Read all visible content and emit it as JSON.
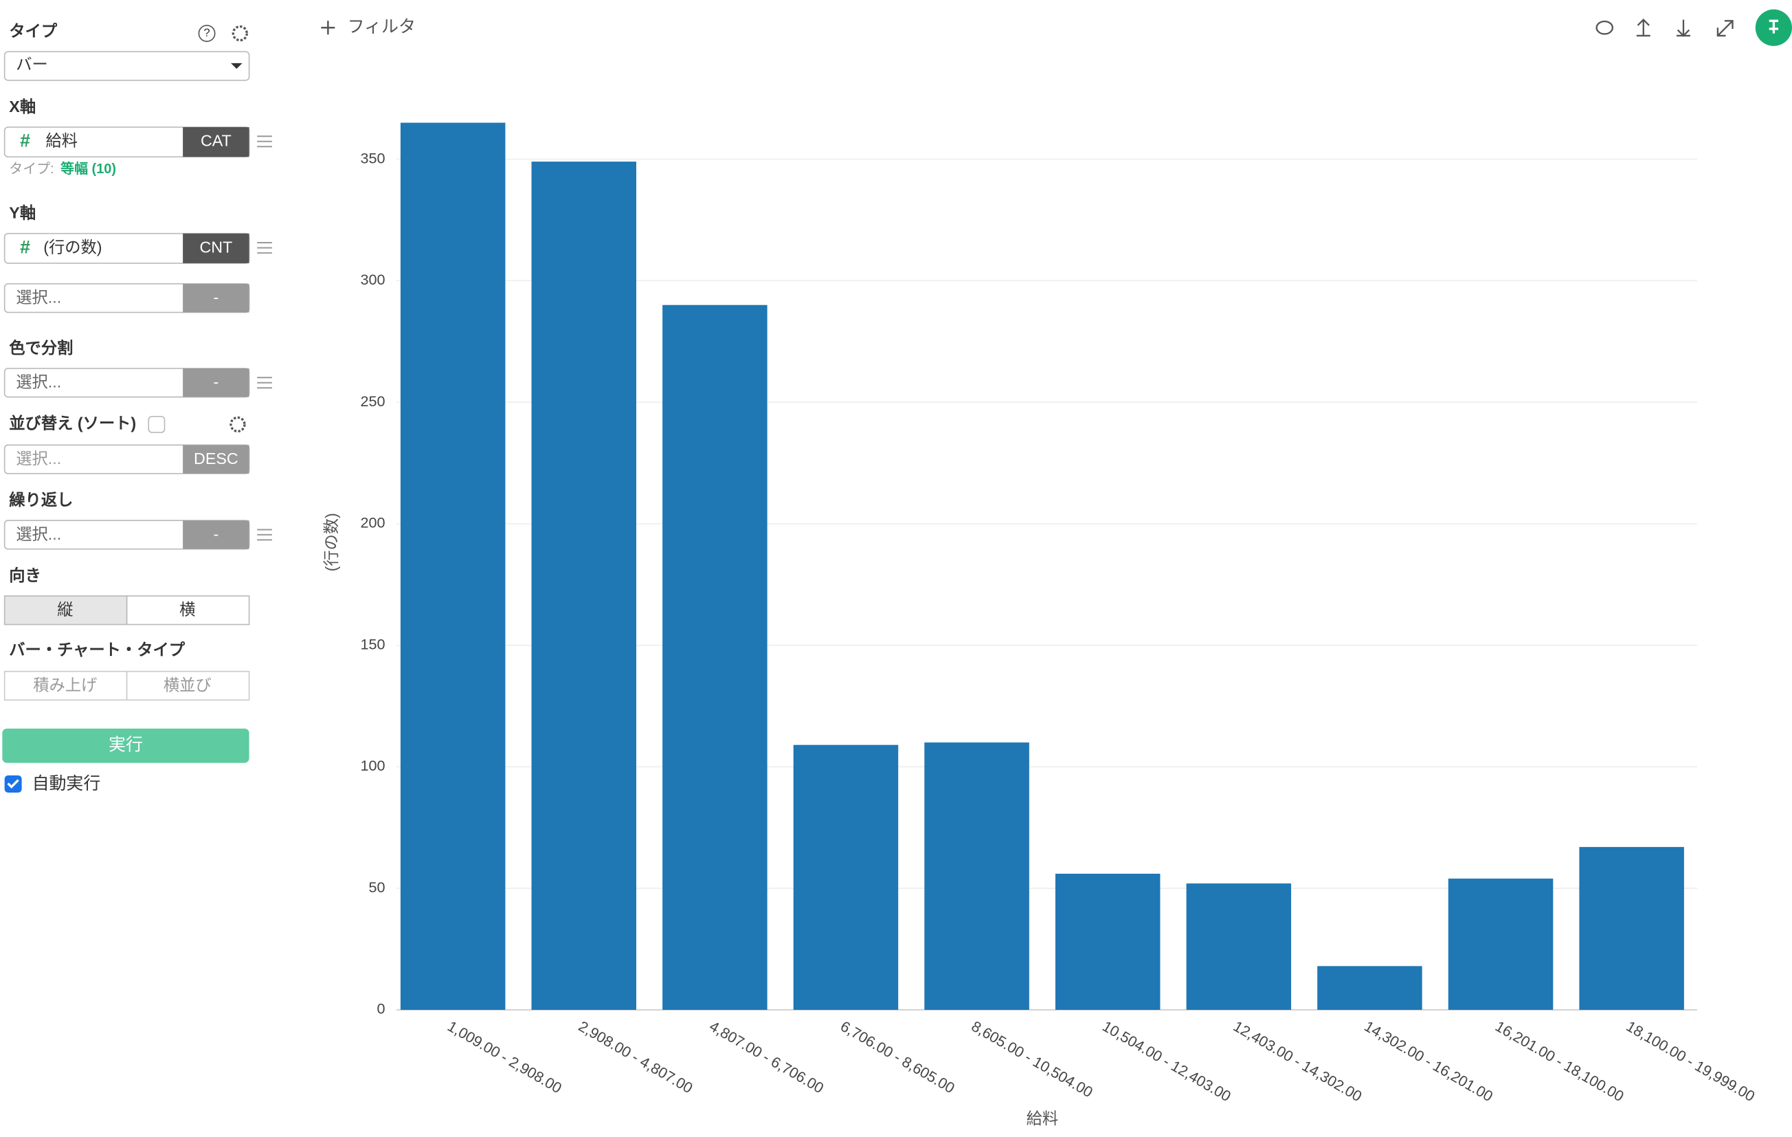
{
  "toolbar": {
    "filter": "フィルタ"
  },
  "sidebar": {
    "type_label": "タイプ",
    "type_value": "バー",
    "x_axis_label": "X軸",
    "x_field": "給料",
    "x_agg": "CAT",
    "x_type_prefix": "タイプ:",
    "x_type_value": "等幅 (10)",
    "y_axis_label": "Y軸",
    "y_field": "(行の数)",
    "y_agg": "CNT",
    "y2_placeholder": "選択...",
    "y2_agg": "-",
    "color_label": "色で分割",
    "color_placeholder": "選択...",
    "color_agg": "-",
    "sort_label": "並び替え (ソート)",
    "sort_placeholder": "選択...",
    "sort_order": "DESC",
    "repeat_label": "繰り返し",
    "repeat_placeholder": "選択...",
    "repeat_agg": "-",
    "orientation_label": "向き",
    "orientation_options": [
      "縦",
      "横"
    ],
    "bar_type_label": "バー・チャート・タイプ",
    "bar_type_options": [
      "積み上げ",
      "横並び"
    ],
    "run_button": "実行",
    "auto_run": "自動実行"
  },
  "chart_data": {
    "type": "bar",
    "x_label": "給料",
    "y_label": "(行の数)",
    "categories": [
      "1,009.00 - 2,908.00",
      "2,908.00 - 4,807.00",
      "4,807.00 - 6,706.00",
      "6,706.00 - 8,605.00",
      "8,605.00 - 10,504.00",
      "10,504.00 - 12,403.00",
      "12,403.00 - 14,302.00",
      "14,302.00 - 16,201.00",
      "16,201.00 - 18,100.00",
      "18,100.00 - 19,999.00"
    ],
    "values": [
      365,
      349,
      290,
      109,
      110,
      56,
      52,
      18,
      54,
      67
    ],
    "color": "#1f77b4",
    "ylim": [
      0,
      366
    ],
    "yticks": [
      0,
      50,
      100,
      150,
      200,
      250,
      300,
      350
    ],
    "grid": true
  }
}
